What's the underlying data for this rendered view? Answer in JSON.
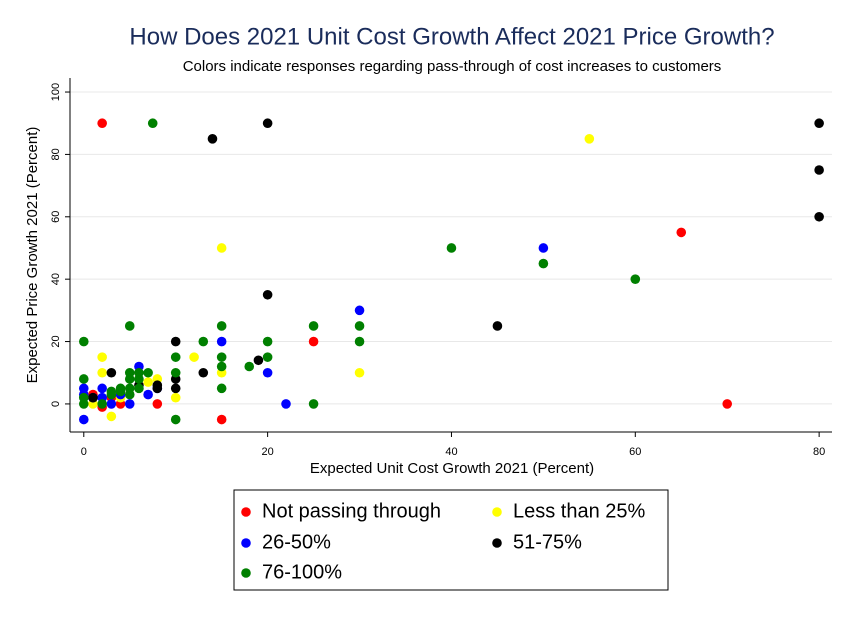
{
  "chart_data": {
    "type": "scatter",
    "title": "How Does 2021 Unit Cost Growth Affect 2021 Price Growth?",
    "subtitle": "Colors indicate responses regarding pass-through of cost increases to customers",
    "x_label": "Expected  Unit Cost Growth 2021 (Percent)",
    "y_label": "Expected Price Growth 2021 (Percent)",
    "xlim": [
      -1.5,
      81.4
    ],
    "ylim": [
      -9,
      104.5
    ],
    "xticks": [
      0,
      20,
      40,
      60,
      80
    ],
    "yticks": [
      0,
      20,
      40,
      60,
      80,
      100
    ],
    "grid": true,
    "series": [
      {
        "name": "Not passing through",
        "color": "#ff0000",
        "x": [
          2,
          25,
          65,
          70,
          15,
          8,
          2,
          1,
          4,
          3
        ],
        "values": [
          90,
          20,
          55,
          0,
          -5,
          0,
          -1,
          3,
          0,
          2
        ]
      },
      {
        "name": "Less than 25%",
        "color": "#ffff00",
        "x": [
          55,
          15,
          2,
          2,
          3,
          12,
          15,
          30,
          10,
          8,
          7,
          1,
          4
        ],
        "values": [
          85,
          50,
          15,
          10,
          -4,
          15,
          10,
          10,
          2,
          8,
          7,
          0,
          2
        ]
      },
      {
        "name": "26-50%",
        "color": "#0000ff",
        "x": [
          0,
          0,
          0,
          2,
          2,
          3,
          5,
          6,
          7,
          15,
          20,
          22,
          30,
          50,
          4,
          1,
          8
        ],
        "values": [
          -5,
          5,
          3,
          5,
          2,
          0,
          0,
          12,
          3,
          20,
          10,
          0,
          30,
          50,
          3,
          2,
          5
        ]
      },
      {
        "name": "51-75%",
        "color": "#000000",
        "x": [
          20,
          14,
          80,
          80,
          80,
          20,
          45,
          10,
          10,
          10,
          13,
          19,
          8,
          8,
          3,
          1,
          6
        ],
        "values": [
          90,
          85,
          90,
          75,
          60,
          35,
          25,
          20,
          8,
          5,
          10,
          14,
          6,
          5,
          10,
          2,
          6
        ]
      },
      {
        "name": "76-100%",
        "color": "#008000",
        "x": [
          0,
          0,
          0,
          0,
          2,
          3,
          4,
          5,
          5,
          5,
          5,
          5,
          6,
          6,
          6,
          7,
          7.5,
          10,
          10,
          10,
          13,
          15,
          15,
          15,
          15,
          18,
          20,
          20,
          25,
          25,
          30,
          30,
          40,
          50,
          60,
          4,
          3
        ],
        "values": [
          20,
          8,
          2,
          0,
          0,
          3,
          5,
          25,
          10,
          8,
          5,
          3,
          8,
          5,
          10,
          10,
          90,
          15,
          10,
          -5,
          20,
          25,
          15,
          12,
          5,
          12,
          20,
          15,
          25,
          0,
          25,
          20,
          50,
          45,
          40,
          4,
          4
        ]
      }
    ]
  }
}
